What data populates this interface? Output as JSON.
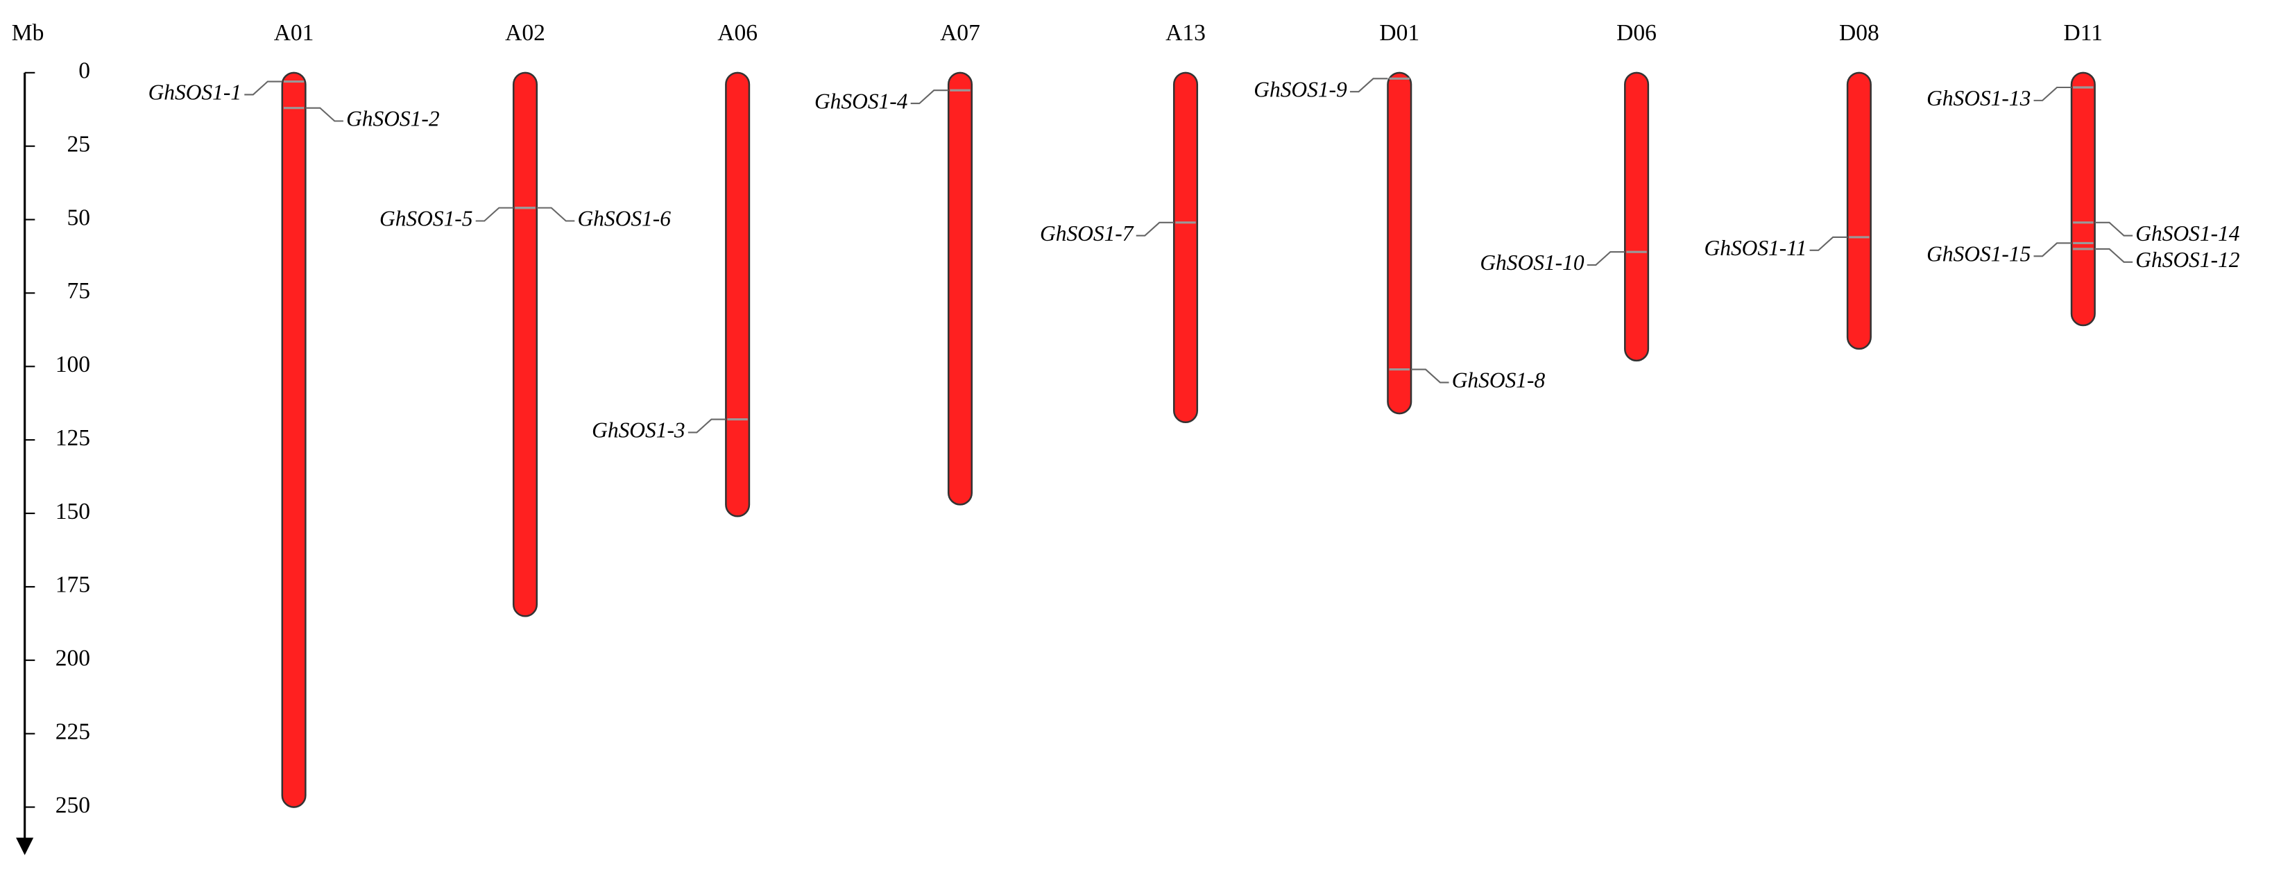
{
  "chart_data": {
    "type": "chromosome-map",
    "y_label": "Mb",
    "ylim": [
      0,
      250
    ],
    "yticks": [
      0,
      25,
      50,
      75,
      100,
      125,
      150,
      175,
      200,
      225,
      250
    ],
    "color": "#ff2020",
    "chromosomes": [
      {
        "name": "A01",
        "length": 250,
        "genes": [
          {
            "name": "GhSOS1-1",
            "position": 3,
            "side": "left"
          },
          {
            "name": "GhSOS1-2",
            "position": 12,
            "side": "right"
          }
        ]
      },
      {
        "name": "A02",
        "length": 185,
        "genes": [
          {
            "name": "GhSOS1-5",
            "position": 46,
            "side": "left"
          },
          {
            "name": "GhSOS1-6",
            "position": 46,
            "side": "right"
          }
        ]
      },
      {
        "name": "A06",
        "length": 151,
        "genes": [
          {
            "name": "GhSOS1-3",
            "position": 118,
            "side": "left"
          }
        ]
      },
      {
        "name": "A07",
        "length": 147,
        "genes": [
          {
            "name": "GhSOS1-4",
            "position": 6,
            "side": "left"
          }
        ]
      },
      {
        "name": "A13",
        "length": 119,
        "genes": [
          {
            "name": "GhSOS1-7",
            "position": 51,
            "side": "left"
          }
        ]
      },
      {
        "name": "D01",
        "length": 116,
        "genes": [
          {
            "name": "GhSOS1-9",
            "position": 2,
            "side": "left"
          },
          {
            "name": "GhSOS1-8",
            "position": 101,
            "side": "right"
          }
        ]
      },
      {
        "name": "D06",
        "length": 98,
        "genes": [
          {
            "name": "GhSOS1-10",
            "position": 61,
            "side": "left"
          }
        ]
      },
      {
        "name": "D08",
        "length": 94,
        "genes": [
          {
            "name": "GhSOS1-11",
            "position": 56,
            "side": "left"
          }
        ]
      },
      {
        "name": "D11",
        "length": 86,
        "genes": [
          {
            "name": "GhSOS1-13",
            "position": 5,
            "side": "left"
          },
          {
            "name": "GhSOS1-14",
            "position": 51,
            "side": "right"
          },
          {
            "name": "GhSOS1-15",
            "position": 58,
            "side": "left"
          },
          {
            "name": "GhSOS1-12",
            "position": 60,
            "side": "right"
          }
        ]
      }
    ]
  }
}
